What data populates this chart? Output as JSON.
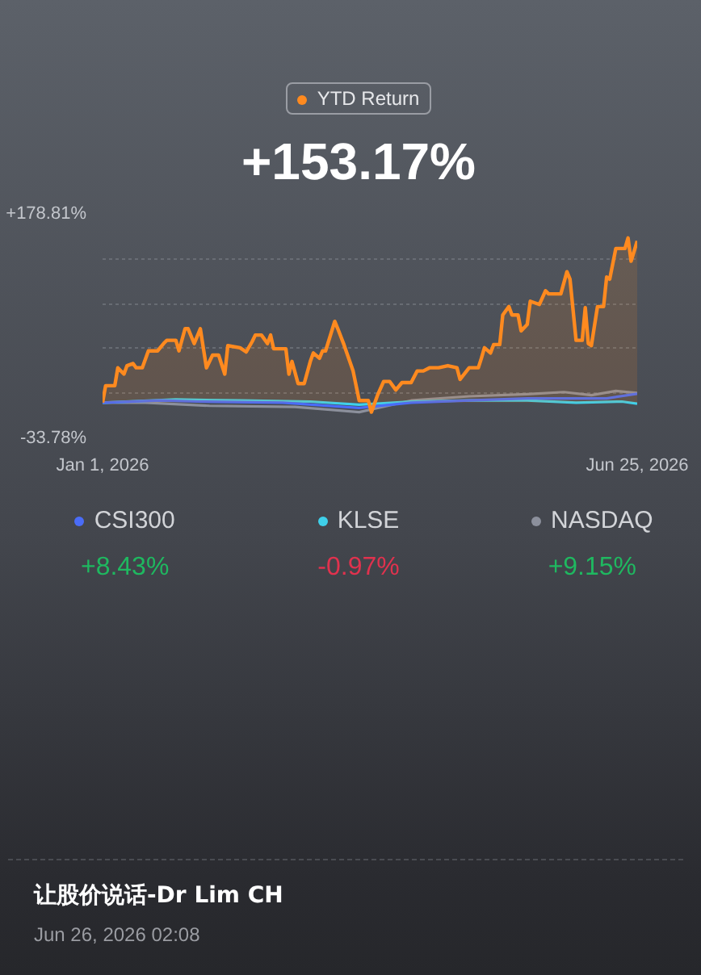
{
  "chart_data": {
    "type": "line",
    "xlim": [
      "2026-01-01",
      "2026-06-25"
    ],
    "xticks": [
      {
        "value": "2026-01-01",
        "label": "Jan 1, 2026"
      },
      {
        "value": "2026-06-25",
        "label": "Jun 25, 2026"
      }
    ],
    "ylim": [
      -33.78,
      178.81
    ],
    "yticks": [
      {
        "value": -33.78,
        "label": "-33.78%"
      },
      {
        "value": 8.74,
        "label": null
      },
      {
        "value": 51.25,
        "label": null
      },
      {
        "value": 93.77,
        "label": null
      },
      {
        "value": 136.29,
        "label": null
      },
      {
        "value": 178.81,
        "label": "+178.81%"
      }
    ],
    "grid": "y",
    "legend": "top",
    "marker": "none",
    "line_style": "solid",
    "series": [
      {
        "name": "YTD Return",
        "type": "area",
        "color": "#ff8a1f",
        "x": [
          "2026-01-01",
          "2026-01-02",
          "2026-01-05",
          "2026-01-06",
          "2026-01-08",
          "2026-01-09",
          "2026-01-11",
          "2026-01-12",
          "2026-01-14",
          "2026-01-16",
          "2026-01-19",
          "2026-01-21",
          "2026-01-22",
          "2026-01-25",
          "2026-01-26",
          "2026-01-28",
          "2026-01-29",
          "2026-01-31",
          "2026-02-02",
          "2026-02-04",
          "2026-02-06",
          "2026-02-08",
          "2026-02-10",
          "2026-02-11",
          "2026-02-15",
          "2026-02-17",
          "2026-02-19",
          "2026-02-20",
          "2026-02-22",
          "2026-02-24",
          "2026-02-25",
          "2026-02-26",
          "2026-03-02",
          "2026-03-03",
          "2026-03-04",
          "2026-03-06",
          "2026-03-08",
          "2026-03-10",
          "2026-03-11",
          "2026-03-13",
          "2026-03-14",
          "2026-03-15",
          "2026-03-18",
          "2026-03-19",
          "2026-03-21",
          "2026-03-24",
          "2026-03-26",
          "2026-03-29",
          "2026-03-30",
          "2026-04-01",
          "2026-04-03",
          "2026-04-05",
          "2026-04-07",
          "2026-04-09",
          "2026-04-12",
          "2026-04-14",
          "2026-04-16",
          "2026-04-18",
          "2026-04-21",
          "2026-04-24",
          "2026-04-27",
          "2026-04-28",
          "2026-05-01",
          "2026-05-04",
          "2026-05-05",
          "2026-05-06",
          "2026-05-08",
          "2026-05-09",
          "2026-05-11",
          "2026-05-12",
          "2026-05-14",
          "2026-05-15",
          "2026-05-17",
          "2026-05-18",
          "2026-05-20",
          "2026-05-21",
          "2026-05-24",
          "2026-05-26",
          "2026-05-27",
          "2026-05-31",
          "2026-06-02",
          "2026-06-03",
          "2026-06-05",
          "2026-06-07",
          "2026-06-08",
          "2026-06-09",
          "2026-06-10",
          "2026-06-12",
          "2026-06-14",
          "2026-06-15",
          "2026-06-16",
          "2026-06-18",
          "2026-06-21",
          "2026-06-22",
          "2026-06-23",
          "2026-06-25"
        ],
        "values": [
          0,
          16,
          16,
          33,
          27,
          35,
          37,
          33,
          33,
          49,
          49,
          56,
          59,
          59,
          49,
          70,
          70,
          56,
          70,
          33,
          45,
          45,
          27,
          54,
          52,
          48,
          58,
          64,
          64,
          56,
          64,
          51,
          51,
          27,
          39,
          18,
          18,
          39,
          47,
          42,
          49,
          49,
          77,
          70,
          55,
          30,
          2,
          2,
          -9,
          7,
          20,
          20,
          12,
          19,
          19,
          30,
          30,
          33,
          33,
          35,
          33,
          22,
          33,
          33,
          42,
          52,
          47,
          55,
          55,
          83,
          91,
          83,
          83,
          68,
          74,
          96,
          93,
          106,
          103,
          103,
          124,
          117,
          59,
          59,
          90,
          56,
          54,
          91,
          91,
          119,
          117,
          146,
          146,
          156,
          134,
          153.17
        ]
      },
      {
        "name": "CSI300",
        "color": "#4a6cf7",
        "x": [
          "2026-01-01",
          "2026-01-20",
          "2026-02-01",
          "2026-03-01",
          "2026-03-26",
          "2026-04-12",
          "2026-05-01",
          "2026-05-20",
          "2026-06-05",
          "2026-06-15",
          "2026-06-25"
        ],
        "values": [
          0,
          2,
          1,
          0,
          -5,
          0,
          2,
          4,
          4,
          4,
          8.43
        ]
      },
      {
        "name": "KLSE",
        "color": "#3fd0ea",
        "x": [
          "2026-01-01",
          "2026-01-25",
          "2026-02-15",
          "2026-03-10",
          "2026-03-26",
          "2026-04-12",
          "2026-05-01",
          "2026-05-20",
          "2026-06-05",
          "2026-06-20",
          "2026-06-25"
        ],
        "values": [
          0,
          3,
          2,
          1,
          -2,
          1,
          2,
          2,
          0,
          1,
          -0.97
        ]
      },
      {
        "name": "NASDAQ",
        "color": "#8c909c",
        "x": [
          "2026-01-01",
          "2026-01-15",
          "2026-02-05",
          "2026-03-05",
          "2026-03-26",
          "2026-04-12",
          "2026-05-01",
          "2026-05-20",
          "2026-06-01",
          "2026-06-10",
          "2026-06-18",
          "2026-06-25"
        ],
        "values": [
          0,
          0,
          -3,
          -4,
          -9,
          2,
          6,
          8,
          10,
          7,
          11,
          9.15
        ]
      }
    ],
    "annotations": [
      "+153.17%",
      "+8.43%",
      "-0.97%",
      "+9.15%",
      "让股价说话-Dr Lim CH",
      "Jun 26, 2026 02:08"
    ]
  }
}
